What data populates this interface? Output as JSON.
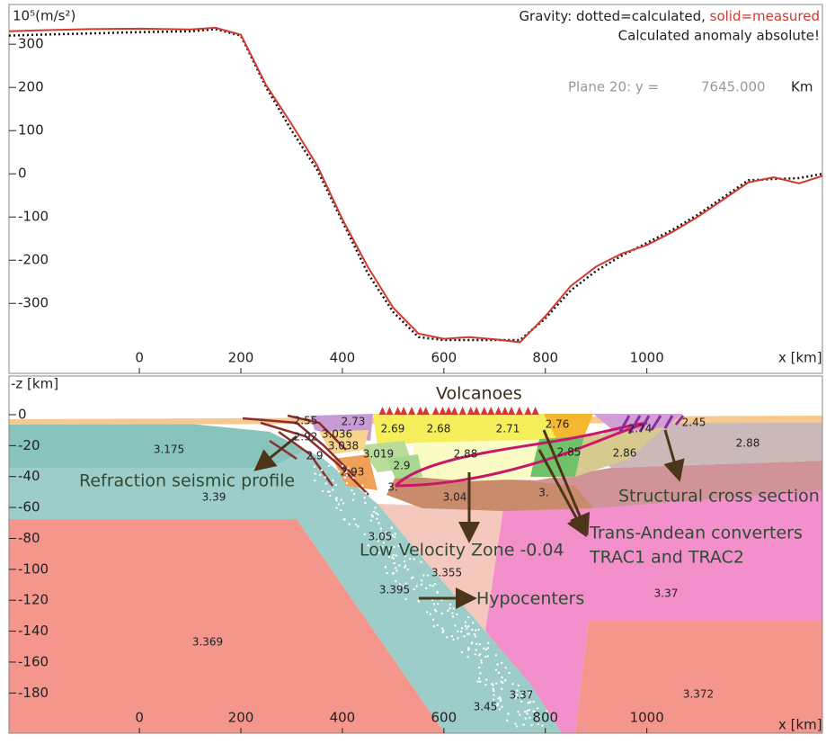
{
  "chart_data": [
    {
      "type": "line",
      "ylabel": "10⁵(m/s²)",
      "xlabel": "x [km]",
      "legend_text": [
        "Gravity: dotted=calculated,",
        "solid=measured"
      ],
      "note": "Calculated anomaly absolute!",
      "plane": {
        "label": "Plane 20: y =",
        "value": "7645.000",
        "unit": "Km"
      },
      "x": [
        -257,
        -200,
        -100,
        0,
        100,
        150,
        200,
        250,
        300,
        350,
        400,
        450,
        500,
        550,
        600,
        650,
        700,
        750,
        800,
        850,
        900,
        950,
        1000,
        1050,
        1100,
        1150,
        1200,
        1250,
        1300,
        1346
      ],
      "series": [
        {
          "style": "dotted",
          "color": "#111111",
          "values": [
            320,
            322,
            325,
            328,
            330,
            335,
            320,
            200,
            100,
            10,
            -110,
            -230,
            -320,
            -378,
            -385,
            -385,
            -385,
            -385,
            -335,
            -270,
            -225,
            -190,
            -160,
            -130,
            -95,
            -55,
            -15,
            -12,
            -10,
            0
          ]
        },
        {
          "style": "solid",
          "color": "#d23a2f",
          "values": [
            330,
            332,
            335,
            336,
            334,
            338,
            322,
            205,
            115,
            20,
            -105,
            -215,
            -310,
            -370,
            -382,
            -378,
            -383,
            -390,
            -330,
            -260,
            -215,
            -185,
            -165,
            -135,
            -100,
            -60,
            -20,
            -8,
            -22,
            -5
          ]
        }
      ],
      "xlim": [
        -257,
        1346
      ],
      "xticks": [
        0,
        200,
        400,
        600,
        800,
        1000
      ],
      "ylim": [
        -462,
        392
      ],
      "yticks": [
        300,
        200,
        100,
        0,
        -100,
        -200,
        -300
      ]
    },
    {
      "type": "cross-section",
      "ylabel": "-z [km]",
      "xlabel": "x [km]",
      "xlim": [
        -257,
        1346
      ],
      "xticks": [
        0,
        200,
        400,
        600,
        800,
        1000
      ],
      "ylim": [
        -206,
        25
      ],
      "yticks": [
        0,
        -20,
        -40,
        -60,
        -80,
        -100,
        -120,
        -140,
        -160,
        -180
      ],
      "density_labels": [
        "2.55",
        "2.73",
        "2.69",
        "2.68",
        "2.71",
        "2.76",
        "2.74",
        "2.45",
        "2.92",
        "3.036",
        "3.175",
        "3.038",
        "3.019",
        "2.88",
        "2.88",
        "2.9",
        "2.9",
        "2.85",
        "2.86",
        "2.93",
        "3.",
        "3.04",
        "3.",
        "3.39",
        "3.05",
        "3.355",
        "3.395",
        "3.37",
        "3.369",
        "3.37",
        "3.45",
        "3.372"
      ],
      "annotations": [
        "Volcanoes",
        "Refraction seismic profile",
        "Low Velocity Zone -0.04",
        "Hypocenters",
        "Trans-Andean converters",
        "TRAC1 and TRAC2",
        "Structural cross section"
      ]
    }
  ]
}
